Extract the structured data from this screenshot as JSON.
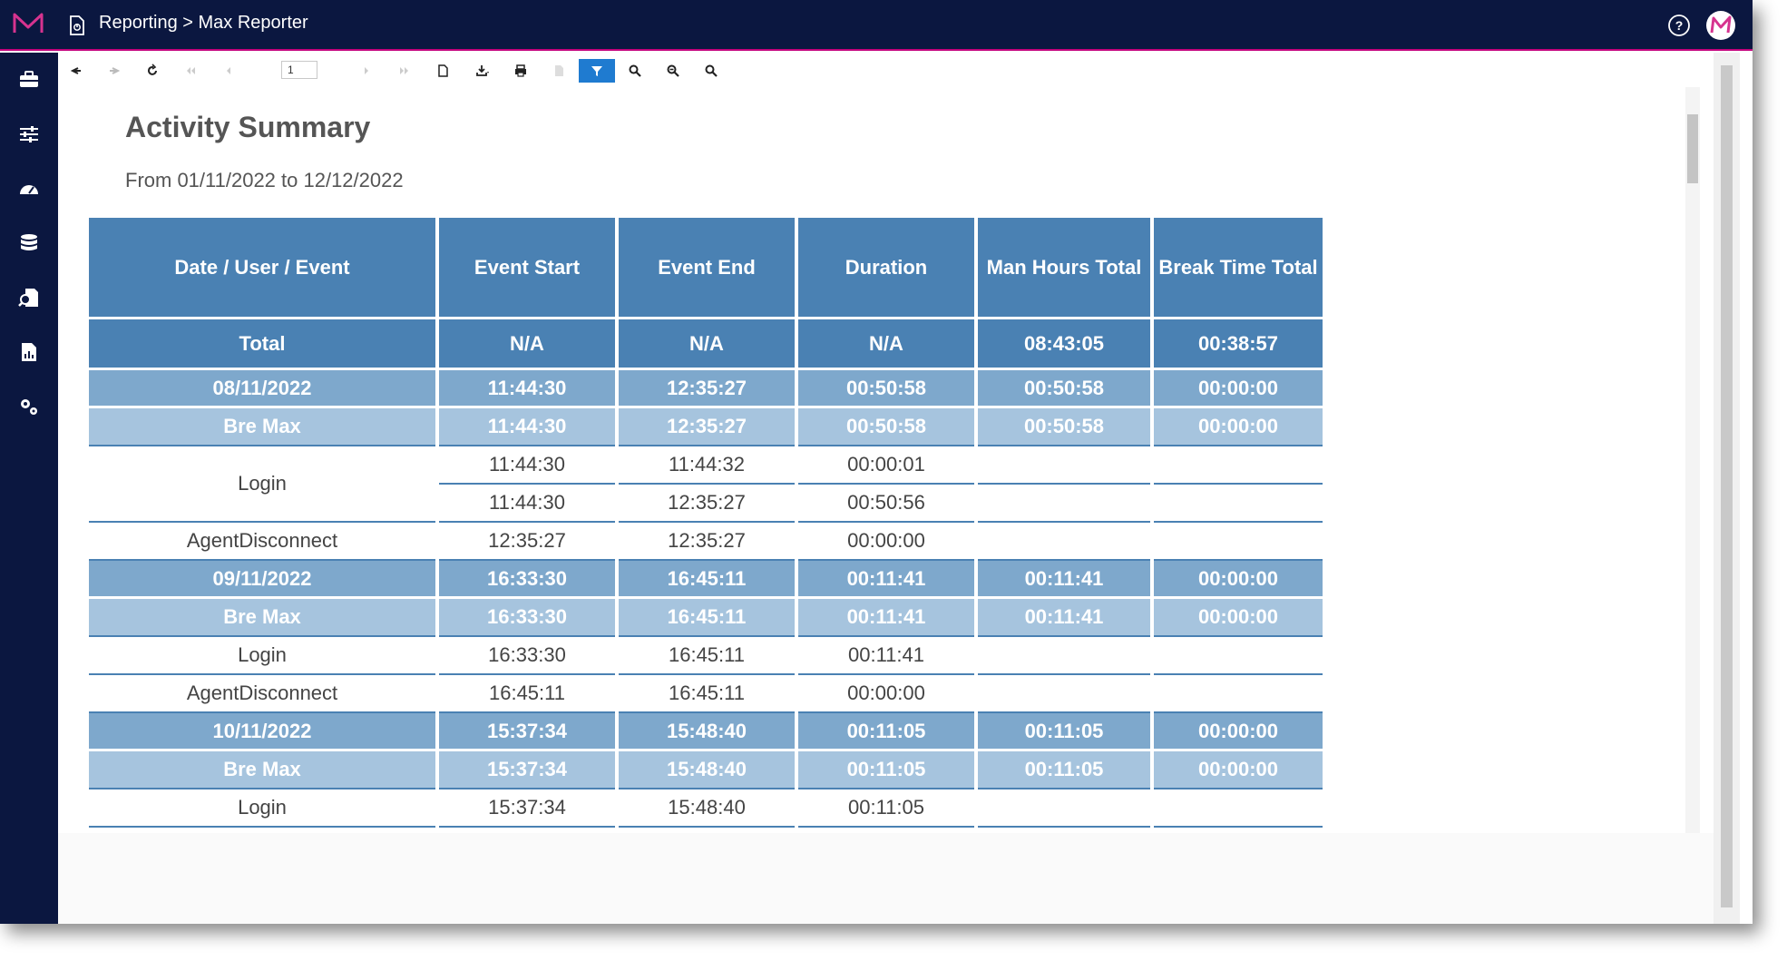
{
  "header": {
    "breadcrumb": "Reporting > Max Reporter"
  },
  "sidebar": {
    "items": [
      {
        "icon": "briefcase-icon"
      },
      {
        "icon": "sliders-icon"
      },
      {
        "icon": "dashboard-icon"
      },
      {
        "icon": "database-icon"
      },
      {
        "icon": "document-search-icon"
      },
      {
        "icon": "report-chart-icon"
      },
      {
        "icon": "gears-icon"
      }
    ]
  },
  "toolbar": {
    "page_number": "1"
  },
  "report": {
    "title": "Activity Summary",
    "subtitle": "From 01/11/2022 to 12/12/2022",
    "columns": [
      "Date / User / Event",
      "Event Start",
      "Event End",
      "Duration",
      "Man Hours Total",
      "Break Time Total"
    ],
    "total": [
      "Total",
      "N/A",
      "N/A",
      "N/A",
      "08:43:05",
      "00:38:57"
    ],
    "groups": [
      {
        "date": [
          "08/11/2022",
          "11:44:30",
          "12:35:27",
          "00:50:58",
          "00:50:58",
          "00:00:00"
        ],
        "user": [
          "Bre Max",
          "11:44:30",
          "12:35:27",
          "00:50:58",
          "00:50:58",
          "00:00:00"
        ],
        "events": [
          {
            "name": "Login",
            "rows": [
              [
                "11:44:30",
                "11:44:32",
                "00:00:01"
              ],
              [
                "11:44:30",
                "12:35:27",
                "00:50:56"
              ]
            ]
          },
          {
            "name": "AgentDisconnect",
            "rows": [
              [
                "12:35:27",
                "12:35:27",
                "00:00:00"
              ]
            ]
          }
        ]
      },
      {
        "date": [
          "09/11/2022",
          "16:33:30",
          "16:45:11",
          "00:11:41",
          "00:11:41",
          "00:00:00"
        ],
        "user": [
          "Bre Max",
          "16:33:30",
          "16:45:11",
          "00:11:41",
          "00:11:41",
          "00:00:00"
        ],
        "events": [
          {
            "name": "Login",
            "rows": [
              [
                "16:33:30",
                "16:45:11",
                "00:11:41"
              ]
            ]
          },
          {
            "name": "AgentDisconnect",
            "rows": [
              [
                "16:45:11",
                "16:45:11",
                "00:00:00"
              ]
            ]
          }
        ]
      },
      {
        "date": [
          "10/11/2022",
          "15:37:34",
          "15:48:40",
          "00:11:05",
          "00:11:05",
          "00:00:00"
        ],
        "user": [
          "Bre Max",
          "15:37:34",
          "15:48:40",
          "00:11:05",
          "00:11:05",
          "00:00:00"
        ],
        "events": [
          {
            "name": "Login",
            "rows": [
              [
                "15:37:34",
                "15:48:40",
                "00:11:05"
              ]
            ]
          }
        ]
      }
    ]
  },
  "colors": {
    "topbar": "#0b1740",
    "accent": "#c4007c",
    "header_blue": "#4a81b3",
    "date_blue": "#7ea8cc",
    "user_blue": "#a6c4de",
    "active_tool": "#1f7bd0"
  }
}
